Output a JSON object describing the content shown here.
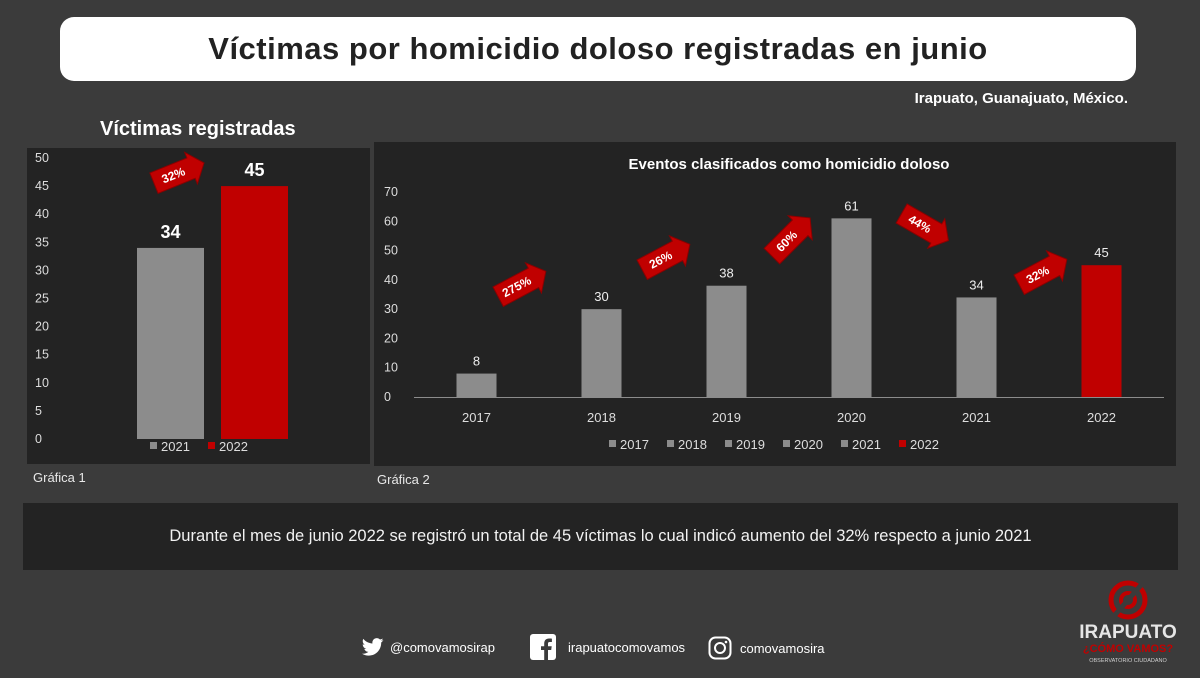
{
  "header": {
    "title": "Víctimas por homicidio doloso registradas en junio",
    "location": "Irapuato, Guanajuato, México."
  },
  "chart1": {
    "title": "Víctimas registradas",
    "caption": "Gráfica 1"
  },
  "chart2": {
    "caption": "Gráfica 2"
  },
  "summary": {
    "text": "Durante el mes de junio 2022 se registró un total de 45 víctimas lo cual indicó aumento del 32% respecto a junio 2021"
  },
  "footer": {
    "twitter": "@comovamosirap",
    "facebook": "irapuatocomovamos",
    "instagram": "comovamosira"
  },
  "logo": {
    "line1": "IRAPUATO",
    "line2": "¿CÓMO VAMOS?",
    "line3": "OBSERVATORIO CIUDADANO"
  },
  "colors": {
    "gray_bar": "#8c8c8c",
    "red_bar": "#c00000",
    "panel_bg": "#232323",
    "page_bg": "#3b3b3b"
  },
  "chart_data": [
    {
      "type": "bar",
      "title": "Víctimas registradas",
      "categories": [
        "2021",
        "2022"
      ],
      "values": [
        34,
        45
      ],
      "colors": [
        "#8c8c8c",
        "#c00000"
      ],
      "ylim": [
        0,
        50
      ],
      "yticks": [
        0,
        5,
        10,
        15,
        20,
        25,
        30,
        35,
        40,
        45,
        50
      ],
      "legend": [
        "2021",
        "2022"
      ],
      "legend_position": "bottom",
      "annotations": [
        {
          "text": "32%",
          "between": [
            "2021",
            "2022"
          ]
        }
      ]
    },
    {
      "type": "bar",
      "title": "Eventos clasificados como homicidio doloso",
      "categories": [
        "2017",
        "2018",
        "2019",
        "2020",
        "2021",
        "2022"
      ],
      "values": [
        8,
        30,
        38,
        61,
        34,
        45
      ],
      "colors": [
        "#8c8c8c",
        "#8c8c8c",
        "#8c8c8c",
        "#8c8c8c",
        "#8c8c8c",
        "#c00000"
      ],
      "ylim": [
        0,
        70
      ],
      "yticks": [
        0,
        10,
        20,
        30,
        40,
        50,
        60,
        70
      ],
      "legend": [
        "2017",
        "2018",
        "2019",
        "2020",
        "2021",
        "2022"
      ],
      "legend_position": "bottom",
      "annotations": [
        {
          "text": "275%",
          "between": [
            "2017",
            "2018"
          ],
          "direction": "up"
        },
        {
          "text": "26%",
          "between": [
            "2018",
            "2019"
          ],
          "direction": "up"
        },
        {
          "text": "60%",
          "between": [
            "2019",
            "2020"
          ],
          "direction": "up"
        },
        {
          "text": "44%",
          "between": [
            "2020",
            "2021"
          ],
          "direction": "down"
        },
        {
          "text": "32%",
          "between": [
            "2021",
            "2022"
          ],
          "direction": "up"
        }
      ]
    }
  ]
}
